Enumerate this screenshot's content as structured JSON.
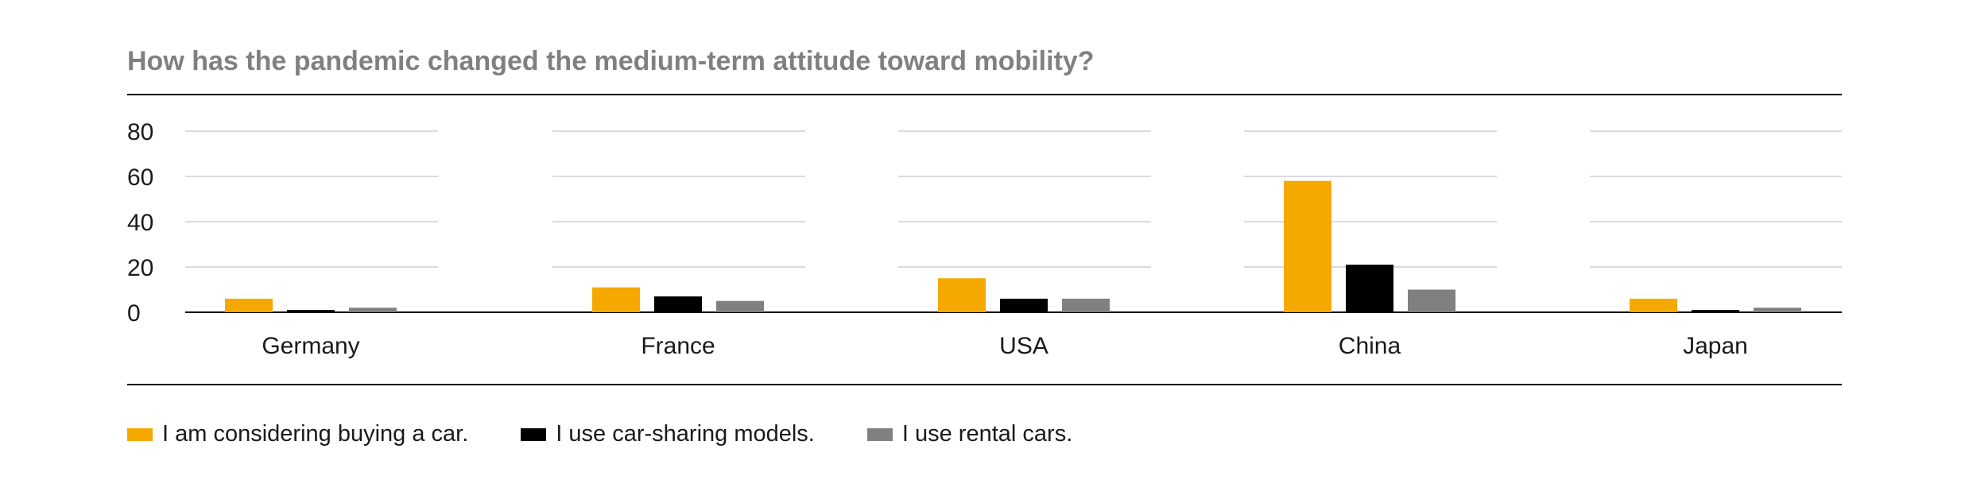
{
  "chart_data": {
    "type": "bar",
    "title": "How has the pandemic changed the medium-term attitude toward mobility?",
    "categories": [
      "Germany",
      "France",
      "USA",
      "China",
      "Japan"
    ],
    "series": [
      {
        "name": "I am considering buying a car.",
        "color": "#f5a800",
        "values": [
          6,
          11,
          15,
          58,
          6
        ]
      },
      {
        "name": "I use car-sharing models.",
        "color": "#000000",
        "values": [
          1,
          7,
          6,
          21,
          1
        ]
      },
      {
        "name": "I use rental cars.",
        "color": "#808080",
        "values": [
          2,
          5,
          6,
          10,
          2
        ]
      }
    ],
    "y_ticks": [
      "0",
      "20",
      "40",
      "60",
      "80"
    ],
    "ylim": [
      0,
      80
    ],
    "grid": true,
    "legend_position": "bottom-left"
  }
}
